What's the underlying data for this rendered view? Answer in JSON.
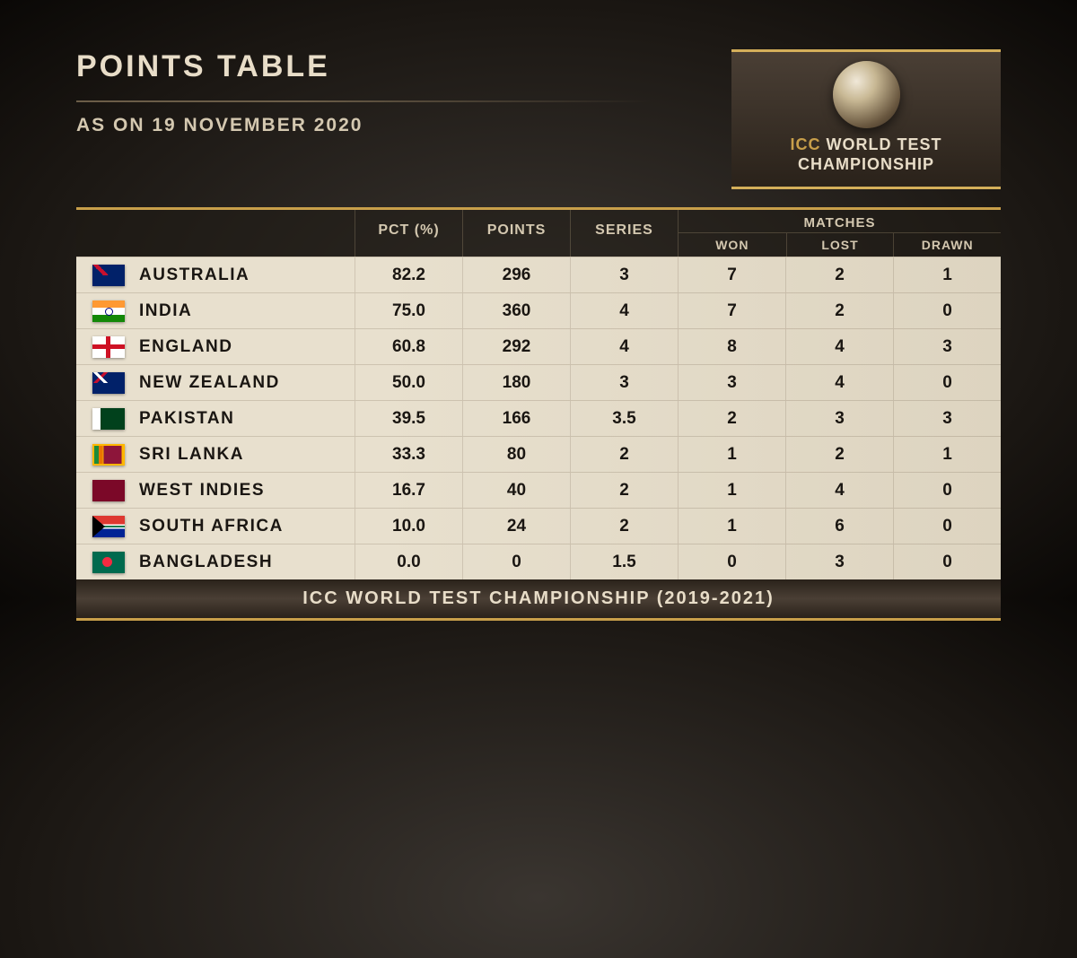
{
  "title": "POINTS TABLE",
  "subtitle": "AS ON 19 NOVEMBER 2020",
  "logo": {
    "icc": "ICC",
    "line1": "WORLD TEST",
    "line2": "CHAMPIONSHIP"
  },
  "headers": {
    "pct": "PCT (%)",
    "points": "POINTS",
    "series": "SERIES",
    "matches": "MATCHES",
    "won": "WON",
    "lost": "LOST",
    "drawn": "DRAWN"
  },
  "rows": [
    {
      "flag": "aus",
      "team": "AUSTRALIA",
      "pct": "82.2",
      "points": "296",
      "series": "3",
      "won": "7",
      "lost": "2",
      "drawn": "1"
    },
    {
      "flag": "ind",
      "team": "INDIA",
      "pct": "75.0",
      "points": "360",
      "series": "4",
      "won": "7",
      "lost": "2",
      "drawn": "0"
    },
    {
      "flag": "eng",
      "team": "ENGLAND",
      "pct": "60.8",
      "points": "292",
      "series": "4",
      "won": "8",
      "lost": "4",
      "drawn": "3"
    },
    {
      "flag": "nz",
      "team": "NEW ZEALAND",
      "pct": "50.0",
      "points": "180",
      "series": "3",
      "won": "3",
      "lost": "4",
      "drawn": "0"
    },
    {
      "flag": "pak",
      "team": "PAKISTAN",
      "pct": "39.5",
      "points": "166",
      "series": "3.5",
      "won": "2",
      "lost": "3",
      "drawn": "3"
    },
    {
      "flag": "sl",
      "team": "SRI LANKA",
      "pct": "33.3",
      "points": "80",
      "series": "2",
      "won": "1",
      "lost": "2",
      "drawn": "1"
    },
    {
      "flag": "wi",
      "team": "WEST INDIES",
      "pct": "16.7",
      "points": "40",
      "series": "2",
      "won": "1",
      "lost": "4",
      "drawn": "0"
    },
    {
      "flag": "sa",
      "team": "SOUTH AFRICA",
      "pct": "10.0",
      "points": "24",
      "series": "2",
      "won": "1",
      "lost": "6",
      "drawn": "0"
    },
    {
      "flag": "ban",
      "team": "BANGLADESH",
      "pct": "0.0",
      "points": "0",
      "series": "1.5",
      "won": "0",
      "lost": "3",
      "drawn": "0"
    }
  ],
  "footer": "ICC WORLD TEST CHAMPIONSHIP (2019-2021)"
}
